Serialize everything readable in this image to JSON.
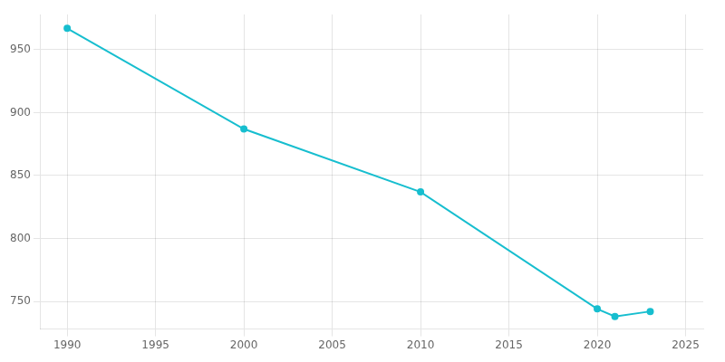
{
  "chart_data": {
    "type": "line",
    "x": [
      1990,
      2000,
      2010,
      2020,
      2021,
      2023
    ],
    "values": [
      967,
      887,
      837,
      744,
      738,
      742
    ],
    "color": "#17BECF",
    "marker": "circle",
    "xlim": [
      1988.5,
      2026
    ],
    "xticks": [
      1990,
      1995,
      2000,
      2005,
      2010,
      2015,
      2020,
      2025
    ],
    "ylim": [
      728,
      978
    ],
    "yticks": [
      750,
      800,
      850,
      900,
      950
    ],
    "grid": true
  }
}
